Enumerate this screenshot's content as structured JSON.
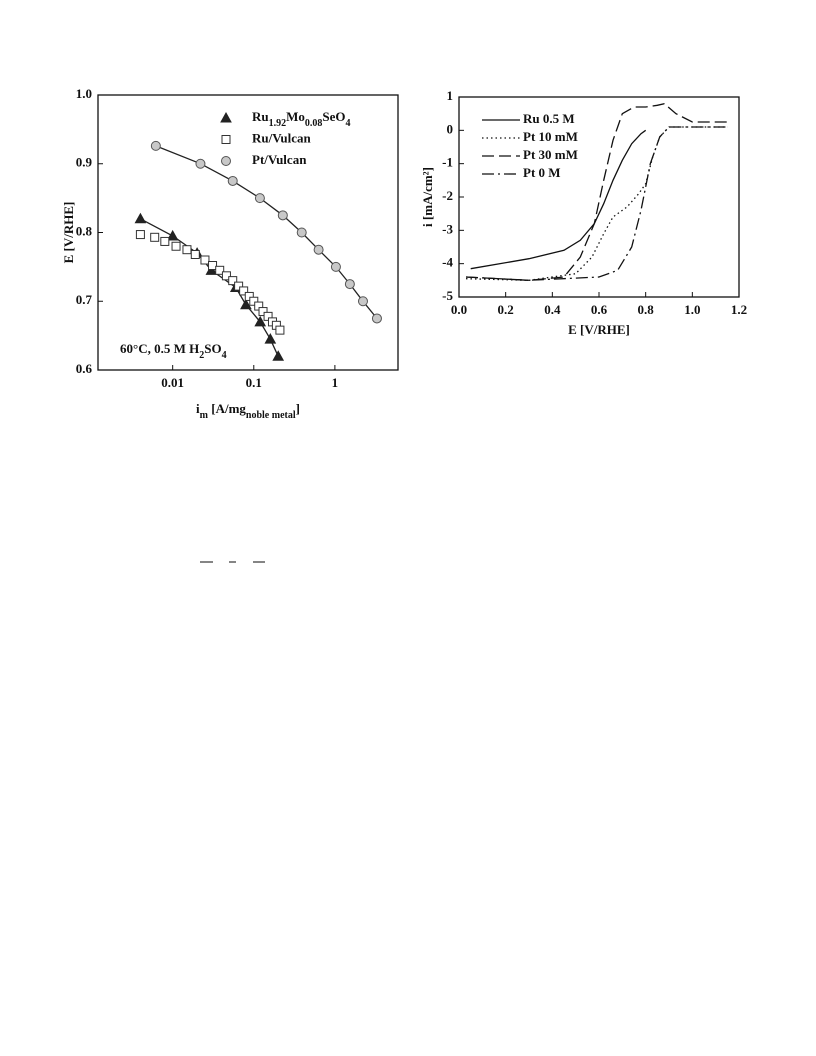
{
  "chart_data": [
    {
      "type": "scatter",
      "x_label": [
        "i",
        "m",
        " [A/mg",
        "noble metal",
        "]"
      ],
      "y_label": "E [V/RHE]",
      "annotation": "60°C, 0.5 M H2SO4",
      "x_scale": "log",
      "xlim": [
        0.0012,
        6
      ],
      "ylim": [
        0.6,
        1.0
      ],
      "xticks": [
        0.01,
        0.1,
        1
      ],
      "yticks": [
        0.6,
        0.7,
        0.8,
        0.9,
        {
          "value": 1.0,
          "label": "1.0"
        }
      ],
      "legend": "upper right",
      "series": [
        {
          "name": "Ru1.92Mo0.08SeO4",
          "marker": "triangle",
          "color": "#222222",
          "line": true,
          "x": [
            0.004,
            0.01,
            0.02,
            0.03,
            0.06,
            0.08,
            0.12,
            0.16,
            0.2
          ],
          "values": [
            0.82,
            0.795,
            0.77,
            0.745,
            0.72,
            0.695,
            0.67,
            0.645,
            0.62
          ]
        },
        {
          "name": "Ru/Vulcan",
          "marker": "square",
          "color": "#ffffff",
          "line": false,
          "x": [
            0.004,
            0.006,
            0.008,
            0.011,
            0.015,
            0.019,
            0.025,
            0.031,
            0.038,
            0.046,
            0.055,
            0.065,
            0.075,
            0.088,
            0.1,
            0.115,
            0.13,
            0.15,
            0.17,
            0.19,
            0.21
          ],
          "values": [
            0.797,
            0.793,
            0.787,
            0.78,
            0.775,
            0.768,
            0.76,
            0.752,
            0.745,
            0.737,
            0.73,
            0.722,
            0.715,
            0.707,
            0.7,
            0.693,
            0.685,
            0.678,
            0.67,
            0.665,
            0.658
          ]
        },
        {
          "name": "Pt/Vulcan",
          "marker": "circle",
          "color": "#c8c8c8",
          "line": true,
          "x": [
            0.0062,
            0.022,
            0.055,
            0.119,
            0.228,
            0.39,
            0.63,
            1.03,
            1.53,
            2.22,
            3.3
          ],
          "values": [
            0.926,
            0.9,
            0.875,
            0.85,
            0.825,
            0.8,
            0.775,
            0.75,
            0.725,
            0.7,
            0.675
          ]
        }
      ]
    },
    {
      "type": "line",
      "x_label": "E [V/RHE]",
      "y_label": "i [mA/cm²]",
      "xlim": [
        0,
        1.2
      ],
      "ylim": [
        -5,
        1
      ],
      "xticks": [
        {
          "value": 0,
          "label": "0.0"
        },
        0.2,
        0.4,
        0.6,
        0.8,
        {
          "value": 1.0,
          "label": "1.0"
        },
        1.2
      ],
      "yticks": [
        -5,
        -4,
        -3,
        -2,
        -1,
        0,
        1
      ],
      "legend": "upper left",
      "series": [
        {
          "name": "Ru 0.5 M",
          "dash": "solid",
          "color": "#111111",
          "x": [
            0.05,
            0.3,
            0.45,
            0.52,
            0.58,
            0.62,
            0.66,
            0.7,
            0.74,
            0.78,
            0.8
          ],
          "values": [
            -4.15,
            -3.85,
            -3.6,
            -3.3,
            -2.8,
            -2.2,
            -1.5,
            -0.9,
            -0.4,
            -0.1,
            0
          ]
        },
        {
          "name": "Pt 10 mM",
          "dash": "dotted",
          "color": "#111111",
          "x": [
            0.03,
            0.3,
            0.5,
            0.57,
            0.62,
            0.66,
            0.72,
            0.77,
            0.8,
            0.83,
            0.86,
            0.9,
            1.0,
            1.15
          ],
          "values": [
            -4.45,
            -4.5,
            -4.3,
            -3.8,
            -3.1,
            -2.6,
            -2.3,
            -1.9,
            -1.6,
            -0.8,
            -0.2,
            0.1,
            0.1,
            0.1
          ]
        },
        {
          "name": "Pt 30 mM",
          "dash": "dashed",
          "color": "#111111",
          "x": [
            0.03,
            0.3,
            0.45,
            0.52,
            0.58,
            0.62,
            0.66,
            0.7,
            0.75,
            0.8,
            0.85,
            0.88,
            0.93,
            1.0,
            1.15
          ],
          "values": [
            -4.4,
            -4.5,
            -4.4,
            -3.8,
            -2.8,
            -1.5,
            -0.3,
            0.5,
            0.7,
            0.7,
            0.75,
            0.8,
            0.5,
            0.25,
            0.25
          ]
        },
        {
          "name": "Pt 0 M",
          "dash": "dashdot",
          "color": "#111111",
          "x": [
            0.03,
            0.3,
            0.6,
            0.68,
            0.74,
            0.78,
            0.82,
            0.86,
            0.9,
            1.0,
            1.15
          ],
          "values": [
            -4.4,
            -4.5,
            -4.4,
            -4.2,
            -3.5,
            -2.4,
            -1.0,
            -0.2,
            0.1,
            0.1,
            0.1
          ]
        }
      ]
    }
  ]
}
